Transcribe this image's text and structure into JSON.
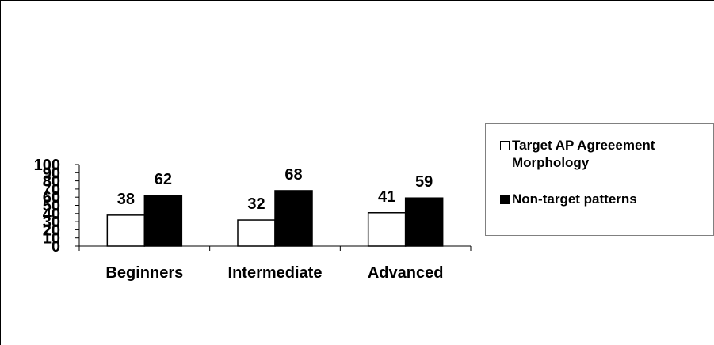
{
  "chart_data": {
    "type": "bar",
    "categories": [
      "Beginners",
      "Intermediate",
      "Advanced"
    ],
    "series": [
      {
        "name": "Target AP Agreeement Morphology",
        "values": [
          38,
          32,
          41
        ],
        "color": "#ffffff"
      },
      {
        "name": "Non-target patterns",
        "values": [
          62,
          68,
          59
        ],
        "color": "#000000"
      }
    ],
    "data_labels": [
      [
        "38",
        "32",
        "41"
      ],
      [
        "62",
        "68",
        "59"
      ]
    ],
    "ylim": [
      0,
      100
    ],
    "yticks": [
      "0",
      "10",
      "20",
      "30",
      "40",
      "50",
      "60",
      "70",
      "80",
      "90",
      "100"
    ],
    "legend_position": "right",
    "grid": false
  }
}
